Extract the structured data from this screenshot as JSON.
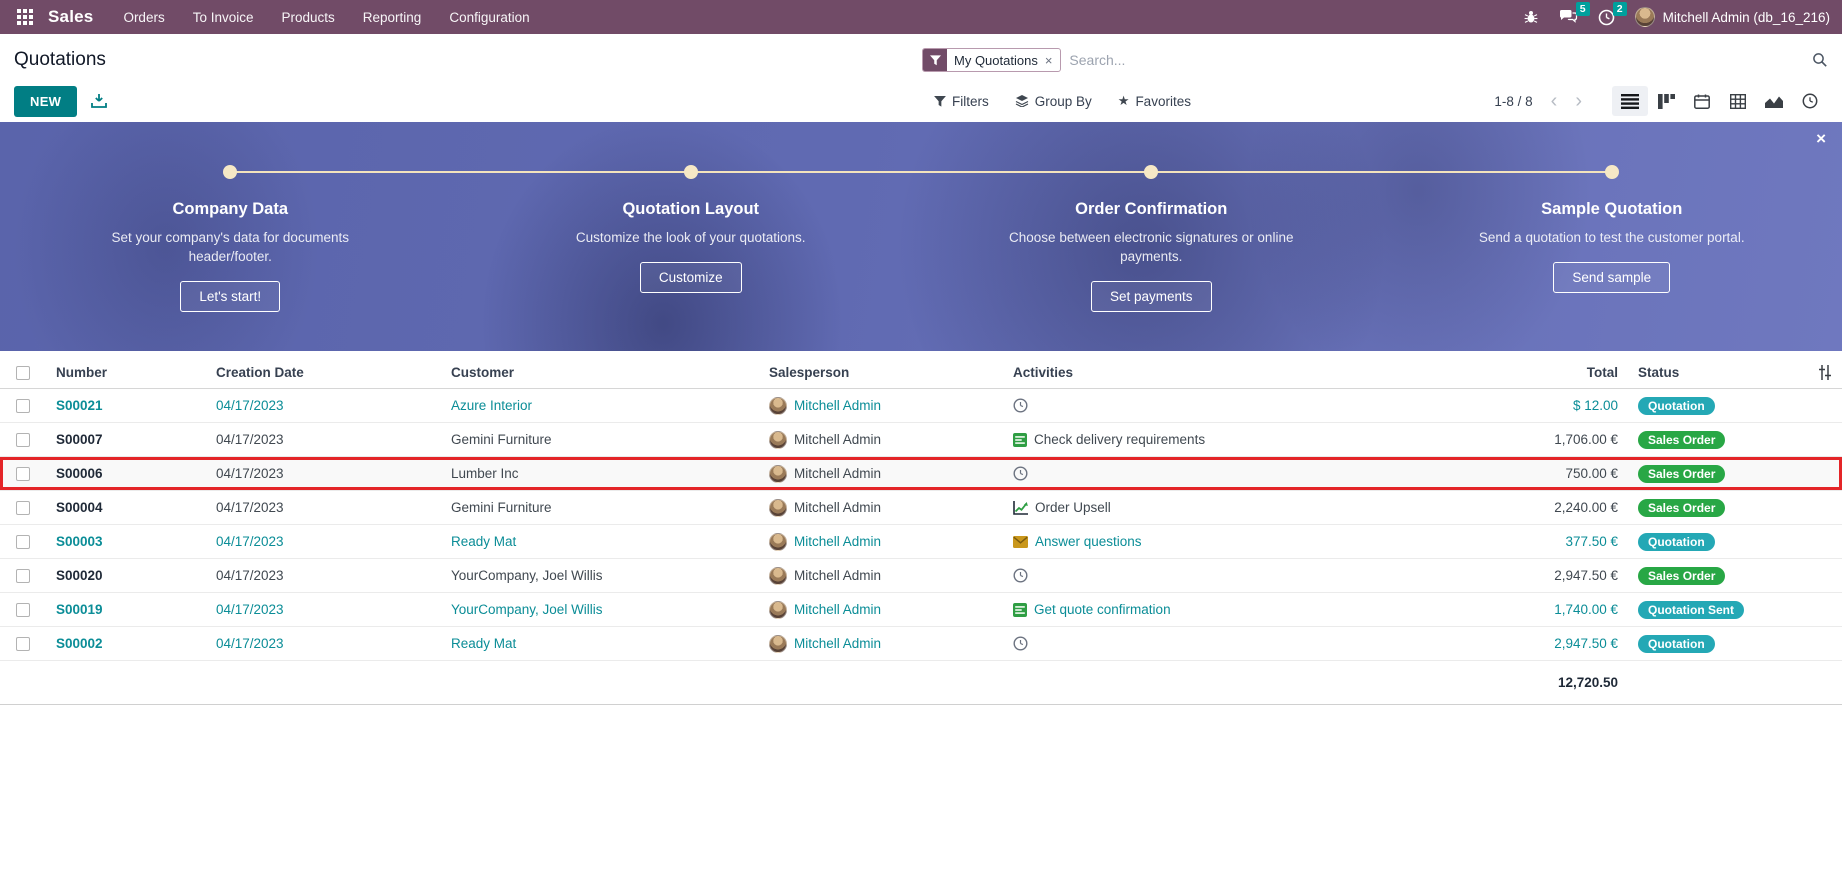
{
  "nav": {
    "app_name": "Sales",
    "menus": [
      "Orders",
      "To Invoice",
      "Products",
      "Reporting",
      "Configuration"
    ],
    "messages_badge": "5",
    "activities_badge": "2",
    "user_name": "Mitchell Admin (db_16_216)"
  },
  "control_panel": {
    "title": "Quotations",
    "new_button": "NEW",
    "search": {
      "facet": "My Quotations",
      "facet_remove": "×",
      "placeholder": "Search..."
    },
    "filters_label": "Filters",
    "group_by_label": "Group By",
    "favorites_label": "Favorites",
    "pager": "1-8 / 8",
    "pager_prev": "‹",
    "pager_next": "›"
  },
  "banner": {
    "close_label": "×",
    "steps": [
      {
        "title": "Company Data",
        "description": "Set your company's data for documents header/footer.",
        "button": "Let's start!"
      },
      {
        "title": "Quotation Layout",
        "description": "Customize the look of your quotations.",
        "button": "Customize"
      },
      {
        "title": "Order Confirmation",
        "description": "Choose between electronic signatures or online payments.",
        "button": "Set payments"
      },
      {
        "title": "Sample Quotation",
        "description": "Send a quotation to test the customer portal.",
        "button": "Send sample"
      }
    ]
  },
  "table": {
    "columns": {
      "number": "Number",
      "creation_date": "Creation Date",
      "customer": "Customer",
      "salesperson": "Salesperson",
      "activities": "Activities",
      "total": "Total",
      "status": "Status"
    },
    "rows": [
      {
        "number": "S00021",
        "date": "04/17/2023",
        "customer": "Azure Interior",
        "salesperson": "Mitchell Admin",
        "activity_icon": "clock",
        "activity_label": "",
        "total": "$ 12.00",
        "status": "Quotation",
        "status_color": "teal",
        "style": "teal",
        "highlighted": false
      },
      {
        "number": "S00007",
        "date": "04/17/2023",
        "customer": "Gemini Furniture",
        "salesperson": "Mitchell Admin",
        "activity_icon": "tasks",
        "activity_label": "Check delivery requirements",
        "total": "1,706.00 €",
        "status": "Sales Order",
        "status_color": "green",
        "style": "dark",
        "highlighted": false
      },
      {
        "number": "S00006",
        "date": "04/17/2023",
        "customer": "Lumber Inc",
        "salesperson": "Mitchell Admin",
        "activity_icon": "clock",
        "activity_label": "",
        "total": "750.00 €",
        "status": "Sales Order",
        "status_color": "green",
        "style": "dark",
        "highlighted": true
      },
      {
        "number": "S00004",
        "date": "04/17/2023",
        "customer": "Gemini Furniture",
        "salesperson": "Mitchell Admin",
        "activity_icon": "chart",
        "activity_label": "Order Upsell",
        "total": "2,240.00 €",
        "status": "Sales Order",
        "status_color": "green",
        "style": "dark",
        "highlighted": false
      },
      {
        "number": "S00003",
        "date": "04/17/2023",
        "customer": "Ready Mat",
        "salesperson": "Mitchell Admin",
        "activity_icon": "envelope",
        "activity_label": "Answer questions",
        "total": "377.50 €",
        "status": "Quotation",
        "status_color": "teal",
        "style": "teal",
        "highlighted": false
      },
      {
        "number": "S00020",
        "date": "04/17/2023",
        "customer": "YourCompany, Joel Willis",
        "salesperson": "Mitchell Admin",
        "activity_icon": "clock",
        "activity_label": "",
        "total": "2,947.50 €",
        "status": "Sales Order",
        "status_color": "green",
        "style": "dark",
        "highlighted": false
      },
      {
        "number": "S00019",
        "date": "04/17/2023",
        "customer": "YourCompany, Joel Willis",
        "salesperson": "Mitchell Admin",
        "activity_icon": "tasks",
        "activity_label": "Get quote confirmation",
        "total": "1,740.00 €",
        "status": "Quotation Sent",
        "status_color": "teal",
        "style": "teal",
        "highlighted": false
      },
      {
        "number": "S00002",
        "date": "04/17/2023",
        "customer": "Ready Mat",
        "salesperson": "Mitchell Admin",
        "activity_icon": "clock",
        "activity_label": "",
        "total": "2,947.50 €",
        "status": "Quotation",
        "status_color": "teal",
        "style": "teal",
        "highlighted": false
      }
    ],
    "footer_total": "12,720.50"
  },
  "colors": {
    "nav_bg": "#714B67",
    "primary": "#017E84",
    "teal_text": "#0b8d97",
    "badge_green": "#28a745",
    "badge_teal": "#24a8b5",
    "highlight_red": "#e42528",
    "banner_dot": "#f6e8c6"
  }
}
